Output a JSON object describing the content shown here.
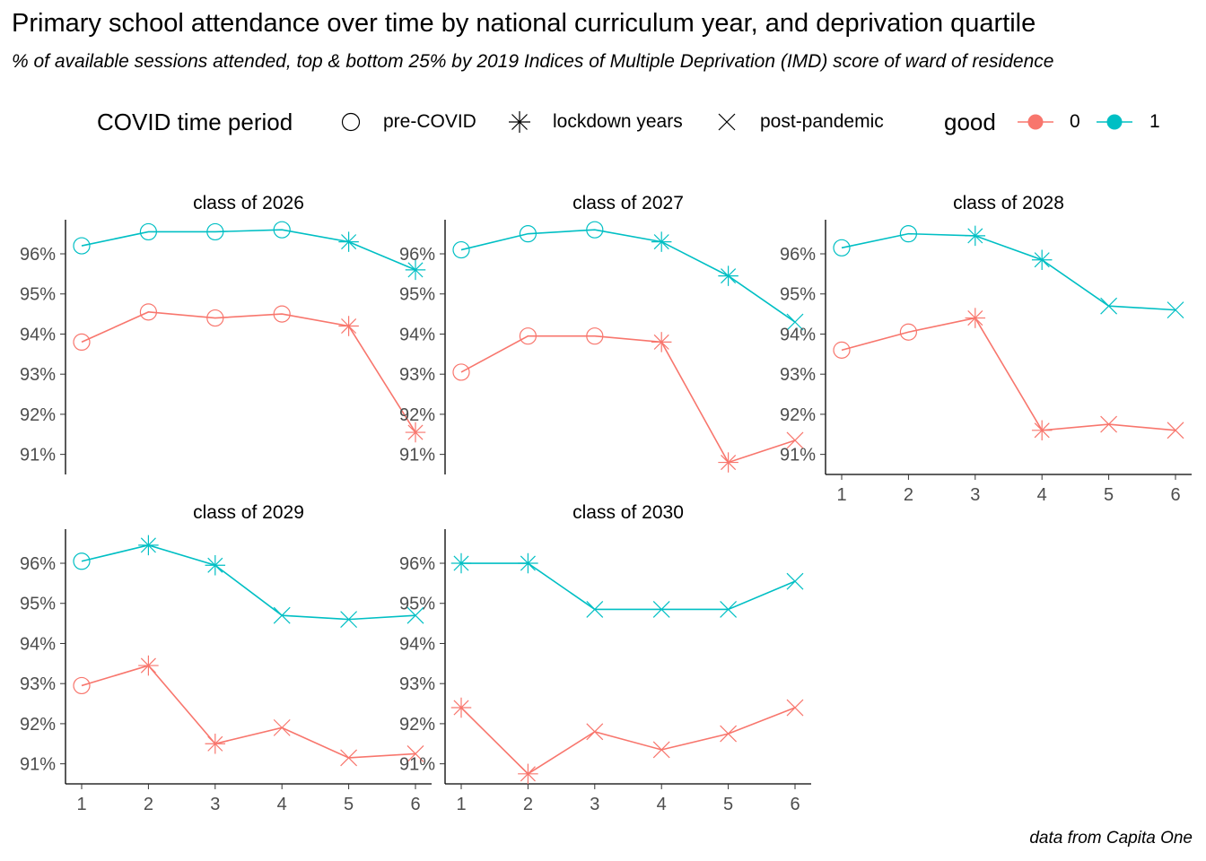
{
  "title": "Primary school attendance over time by national curriculum year, and deprivation quartile",
  "subtitle": "% of available sessions attended, top & bottom 25% by 2019 Indices of Multiple Deprivation (IMD) score of ward of residence",
  "caption": "data from Capita One",
  "legend": {
    "shape_title": "COVID time period",
    "shape_items": [
      {
        "label": "pre-COVID",
        "shape": "circle"
      },
      {
        "label": "lockdown years",
        "shape": "asterisk"
      },
      {
        "label": "post-pandemic",
        "shape": "cross"
      }
    ],
    "color_title": "good",
    "color_items": [
      {
        "label": "0",
        "color": "#F8766D"
      },
      {
        "label": "1",
        "color": "#00BFC4"
      }
    ]
  },
  "chart_data": {
    "type": "line",
    "xlabel": "",
    "ylabel": "",
    "x_ticks": [
      1,
      2,
      3,
      4,
      5,
      6
    ],
    "y_ticks": [
      91,
      92,
      93,
      94,
      95,
      96
    ],
    "y_tick_labels": [
      "91%",
      "92%",
      "93%",
      "94%",
      "95%",
      "96%"
    ],
    "grid": false,
    "legend_position": "top",
    "colors": {
      "0": "#F8766D",
      "1": "#00BFC4"
    },
    "panels": [
      {
        "facet": "class of 2026",
        "x_axis_shown": false,
        "series": [
          {
            "good": "0",
            "values": [
              93.8,
              94.55,
              94.4,
              94.5,
              94.2,
              91.55
            ],
            "period": [
              "pre-COVID",
              "pre-COVID",
              "pre-COVID",
              "pre-COVID",
              "lockdown years",
              "lockdown years"
            ]
          },
          {
            "good": "1",
            "values": [
              96.2,
              96.55,
              96.55,
              96.6,
              96.3,
              95.6
            ],
            "period": [
              "pre-COVID",
              "pre-COVID",
              "pre-COVID",
              "pre-COVID",
              "lockdown years",
              "lockdown years"
            ]
          }
        ]
      },
      {
        "facet": "class of 2027",
        "x_axis_shown": false,
        "series": [
          {
            "good": "0",
            "values": [
              93.05,
              93.95,
              93.95,
              93.8,
              90.8,
              91.35
            ],
            "period": [
              "pre-COVID",
              "pre-COVID",
              "pre-COVID",
              "lockdown years",
              "lockdown years",
              "post-pandemic"
            ]
          },
          {
            "good": "1",
            "values": [
              96.1,
              96.5,
              96.6,
              96.3,
              95.45,
              94.3
            ],
            "period": [
              "pre-COVID",
              "pre-COVID",
              "pre-COVID",
              "lockdown years",
              "lockdown years",
              "post-pandemic"
            ]
          }
        ]
      },
      {
        "facet": "class of 2028",
        "x_axis_shown": true,
        "series": [
          {
            "good": "0",
            "values": [
              93.6,
              94.05,
              94.4,
              91.6,
              91.75,
              91.6
            ],
            "period": [
              "pre-COVID",
              "pre-COVID",
              "lockdown years",
              "lockdown years",
              "post-pandemic",
              "post-pandemic"
            ]
          },
          {
            "good": "1",
            "values": [
              96.15,
              96.5,
              96.45,
              95.85,
              94.7,
              94.6
            ],
            "period": [
              "pre-COVID",
              "pre-COVID",
              "lockdown years",
              "lockdown years",
              "post-pandemic",
              "post-pandemic"
            ]
          }
        ]
      },
      {
        "facet": "class of 2029",
        "x_axis_shown": true,
        "series": [
          {
            "good": "0",
            "values": [
              92.95,
              93.45,
              91.5,
              91.9,
              91.15,
              91.25
            ],
            "period": [
              "pre-COVID",
              "lockdown years",
              "lockdown years",
              "post-pandemic",
              "post-pandemic",
              "post-pandemic"
            ]
          },
          {
            "good": "1",
            "values": [
              96.05,
              96.45,
              95.95,
              94.7,
              94.6,
              94.7
            ],
            "period": [
              "pre-COVID",
              "lockdown years",
              "lockdown years",
              "post-pandemic",
              "post-pandemic",
              "post-pandemic"
            ]
          }
        ]
      },
      {
        "facet": "class of 2030",
        "x_axis_shown": true,
        "series": [
          {
            "good": "0",
            "values": [
              92.4,
              90.75,
              91.8,
              91.35,
              91.75,
              92.4
            ],
            "period": [
              "lockdown years",
              "lockdown years",
              "post-pandemic",
              "post-pandemic",
              "post-pandemic",
              "post-pandemic"
            ]
          },
          {
            "good": "1",
            "values": [
              96.0,
              96.0,
              94.85,
              94.85,
              94.85,
              95.55
            ],
            "period": [
              "lockdown years",
              "lockdown years",
              "post-pandemic",
              "post-pandemic",
              "post-pandemic",
              "post-pandemic"
            ]
          }
        ]
      }
    ]
  }
}
